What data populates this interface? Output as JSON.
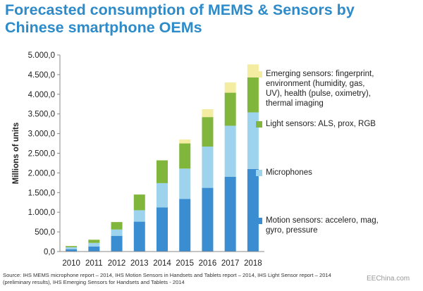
{
  "chart_data": {
    "type": "bar",
    "stacked": true,
    "title": "Forecasted consumption of MEMS & Sensors by Chinese smartphone OEMs",
    "title_lines": [
      "Forecasted consumption of MEMS & Sensors by",
      "Chinese smartphone OEMs"
    ],
    "xlabel": "",
    "ylabel": "Millions of units",
    "ylim": [
      0,
      5000
    ],
    "yticks": [
      0,
      500,
      1000,
      1500,
      2000,
      2500,
      3000,
      3500,
      4000,
      4500,
      5000
    ],
    "ytick_labels": [
      "0,0",
      "500,0",
      "1.000,0",
      "1.500,0",
      "2.000,0",
      "2.500,0",
      "3.000,0",
      "3.500,0",
      "4.000,0",
      "4.500,0",
      "5.000,0"
    ],
    "categories": [
      "2010",
      "2011",
      "2012",
      "2013",
      "2014",
      "2015",
      "2016",
      "2017",
      "2018"
    ],
    "series": [
      {
        "name": "Motion sensors: accelero, mag, gyro, pressure",
        "legend_lines": [
          "Motion sensors: accelero, mag,",
          "gyro, pressure"
        ],
        "color": "#3a8dd0",
        "values": [
          60,
          130,
          400,
          760,
          1120,
          1340,
          1620,
          1900,
          2100
        ]
      },
      {
        "name": "Microphones",
        "legend_lines": [
          "Microphones"
        ],
        "color": "#9dd3ec",
        "values": [
          50,
          90,
          160,
          290,
          620,
          770,
          1050,
          1300,
          1440
        ]
      },
      {
        "name": "Light sensors: ALS, prox, RGB",
        "legend_lines": [
          "Light sensors: ALS, prox, RGB"
        ],
        "color": "#80b63b",
        "values": [
          30,
          80,
          190,
          400,
          580,
          640,
          750,
          840,
          890
        ]
      },
      {
        "name": "Emerging sensors: fingerprint, environment (humidity, gas, UV), health (pulse, oximetry), thermal imaging",
        "legend_lines": [
          "Emerging sensors: fingerprint,",
          "environment (humidity, gas,",
          "UV), health (pulse, oximetry),",
          "thermal imaging"
        ],
        "color": "#f4eca0",
        "values": [
          0,
          0,
          0,
          0,
          0,
          100,
          200,
          260,
          330
        ]
      }
    ],
    "legend_position": "right"
  },
  "source_lines": [
    "Source: IHS MEMS microphone report – 2014, IHS Motion Sensors in Handsets and Tablets report – 2014, IHS Light Sensor report – 2014",
    "(preliminary results), IHS Emerging Sensors for Handsets and Tablets - 2014"
  ],
  "watermark": "EEChina.com"
}
